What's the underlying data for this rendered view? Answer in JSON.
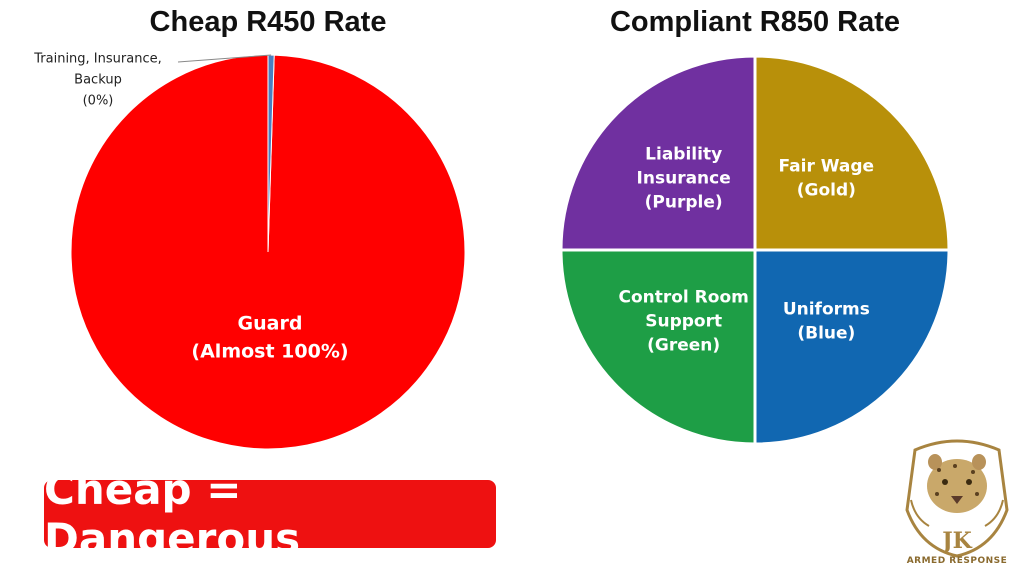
{
  "chart_data": [
    {
      "type": "pie",
      "title": "Cheap R450 Rate",
      "slices": [
        {
          "label": [
            "Guard",
            "(Almost 100%)"
          ],
          "value": 99.5,
          "color": "#ff0000"
        },
        {
          "label": [
            "Training, Insurance,",
            "Backup",
            "(0%)"
          ],
          "value": 0.5,
          "color": "#4a7fc1"
        }
      ]
    },
    {
      "type": "pie",
      "title": "Compliant R850 Rate",
      "slices": [
        {
          "label": [
            "Fair Wage",
            "(Gold)"
          ],
          "value": 25,
          "color": "#b8900a"
        },
        {
          "label": [
            "Uniforms",
            "(Blue)"
          ],
          "value": 25,
          "color": "#1167b1"
        },
        {
          "label": [
            "Control Room",
            "Support",
            "(Green)"
          ],
          "value": 25,
          "color": "#1e9e46"
        },
        {
          "label": [
            "Liability",
            "Insurance",
            "(Purple)"
          ],
          "value": 25,
          "color": "#7030a0"
        }
      ]
    }
  ],
  "banner": {
    "text": "Cheap = Dangerous",
    "color": "#ee1111"
  },
  "logo": {
    "icon": "leopard-head-icon",
    "initials": "JK",
    "text": "ARMED RESPONSE",
    "color": "#a88440"
  }
}
